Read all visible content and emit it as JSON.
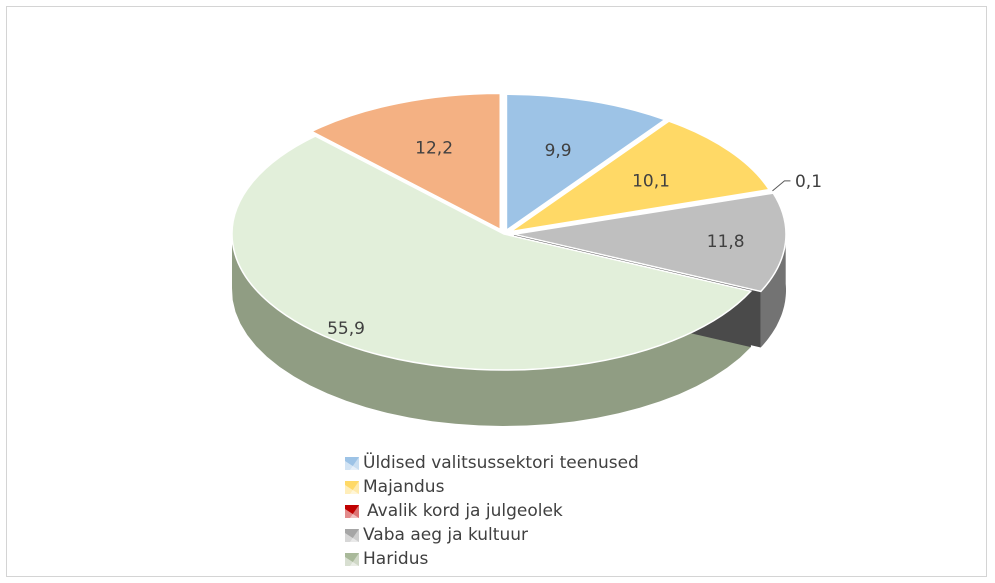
{
  "chart_data": {
    "type": "pie",
    "title": "",
    "decimal_separator": ",",
    "slices": [
      {
        "name": "Üldised valitsussektori teenused",
        "value": 9.9,
        "label": "9,9",
        "color": "#9dc3e6"
      },
      {
        "name": "Majandus",
        "value": 10.1,
        "label": "10,1",
        "color": "#ffd966"
      },
      {
        "name": "Avalik kord ja julgeolek",
        "value": 0.1,
        "label": "0,1",
        "color": "#c00000"
      },
      {
        "name": "Vaba aeg ja kultuur",
        "value": 11.8,
        "label": "11,8",
        "color": "#bfbfbf"
      },
      {
        "name": "Haridus",
        "value": 55.9,
        "label": "55,9",
        "color": "#e2efda"
      },
      {
        "name": "",
        "value": 12.2,
        "label": "12,2",
        "color": "#f4b183"
      }
    ],
    "legend": {
      "placement": "bottom",
      "items": [
        {
          "label": "Üldised valitsussektori teenused",
          "color": "#9dc3e6"
        },
        {
          "label": "Majandus",
          "color": "#ffd966"
        },
        {
          "label": "Avalik kord ja julgeolek",
          "color": "#c00000"
        },
        {
          "label": "Vaba aeg ja kultuur",
          "color": "#a6a6a6"
        },
        {
          "label": "Haridus",
          "color": "#a9b99a"
        }
      ]
    },
    "style": "3d-exploded"
  }
}
